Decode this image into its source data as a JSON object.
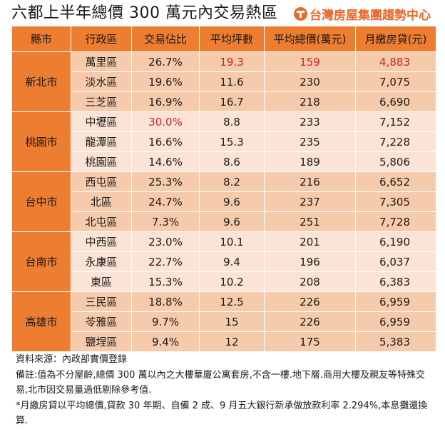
{
  "title": "六都上半年總價 300 萬元內交易熱區",
  "logo_text": "台灣房屋集團趨勢中心",
  "colors": {
    "header": "#ed7d31",
    "group_dark": "#f6cbab",
    "group_light": "#fbe4d5",
    "highlight": "#c0272d"
  },
  "chart_data": {
    "type": "table",
    "columns": [
      "縣市",
      "行政區",
      "交易佔比",
      "平均坪數",
      "平均總價(萬元)",
      "月繳房貸(元)"
    ],
    "groups": [
      {
        "city": "新北市",
        "rows": [
          {
            "district": "萬里區",
            "share": "26.7%",
            "ping": "19.3",
            "price": "159",
            "mortgage": "4,883",
            "highlight": [
              "ping",
              "price",
              "mortgage"
            ]
          },
          {
            "district": "淡水區",
            "share": "19.6%",
            "ping": "11.6",
            "price": "230",
            "mortgage": "7,075",
            "highlight": []
          },
          {
            "district": "三芝區",
            "share": "16.9%",
            "ping": "16.7",
            "price": "218",
            "mortgage": "6,690",
            "highlight": []
          }
        ]
      },
      {
        "city": "桃園市",
        "rows": [
          {
            "district": "中壢區",
            "share": "30.0%",
            "ping": "8.8",
            "price": "233",
            "mortgage": "7,152",
            "highlight": [
              "share"
            ]
          },
          {
            "district": "龍潭區",
            "share": "16.6%",
            "ping": "15.3",
            "price": "235",
            "mortgage": "7,228",
            "highlight": []
          },
          {
            "district": "桃園區",
            "share": "14.6%",
            "ping": "8.6",
            "price": "189",
            "mortgage": "5,806",
            "highlight": []
          }
        ]
      },
      {
        "city": "台中市",
        "rows": [
          {
            "district": "西屯區",
            "share": "25.3%",
            "ping": "8.2",
            "price": "216",
            "mortgage": "6,652",
            "highlight": []
          },
          {
            "district": "北區",
            "share": "24.7%",
            "ping": "9.6",
            "price": "237",
            "mortgage": "7,305",
            "highlight": []
          },
          {
            "district": "北屯區",
            "share": "7.3%",
            "ping": "9.6",
            "price": "251",
            "mortgage": "7,728",
            "highlight": []
          }
        ]
      },
      {
        "city": "台南市",
        "rows": [
          {
            "district": "中西區",
            "share": "23.0%",
            "ping": "10.1",
            "price": "201",
            "mortgage": "6,190",
            "highlight": []
          },
          {
            "district": "永康區",
            "share": "22.7%",
            "ping": "9.4",
            "price": "196",
            "mortgage": "6,037",
            "highlight": []
          },
          {
            "district": "東區",
            "share": "15.3%",
            "ping": "10.2",
            "price": "208",
            "mortgage": "6,383",
            "highlight": []
          }
        ]
      },
      {
        "city": "高雄市",
        "rows": [
          {
            "district": "三民區",
            "share": "18.8%",
            "ping": "12.5",
            "price": "226",
            "mortgage": "6,959",
            "highlight": []
          },
          {
            "district": "苓雅區",
            "share": "9.7%",
            "ping": "15",
            "price": "226",
            "mortgage": "6,959",
            "highlight": []
          },
          {
            "district": "鹽埕區",
            "share": "9.4%",
            "ping": "12",
            "price": "175",
            "mortgage": "5,383",
            "highlight": []
          }
        ]
      }
    ]
  },
  "notes": [
    "資料來源：內政部實價登錄",
    "備註:值為不分屋齡,總價 300 萬以內之大樓華廈公寓套房,不含一樓.地下層.商用大樓及親友等特殊交易,北市因交易量過低剔除參考值.",
    "*月繳房貸以平均總價,貸款 30 年期、自備 2 成、9 月五大銀行新承做放款利率 2.294%,本息攤還換算."
  ]
}
